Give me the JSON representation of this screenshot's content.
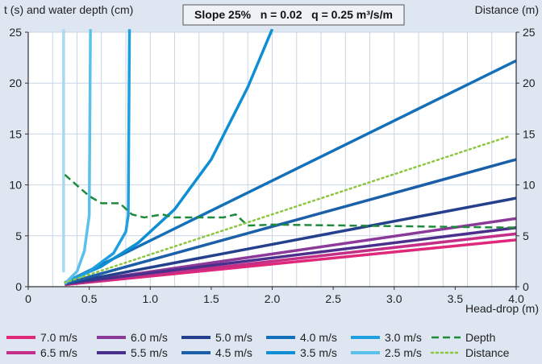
{
  "chart_data": {
    "type": "line",
    "title": "Slope 25%   n = 0.02   q = 0.25 m³/s/m",
    "ylabel_left": "t (s) and water depth (cm)",
    "ylabel_right": "Distance (m)",
    "xlabel": "Head-drop (m)",
    "xlim": [
      0,
      4.0
    ],
    "ylim": [
      0,
      25
    ],
    "ylim_right": [
      0,
      25
    ],
    "x_ticks": [
      "0",
      "0.5",
      "1.0",
      "1.5",
      "2.0",
      "2.5",
      "3.0",
      "3.5",
      "4.0"
    ],
    "y_ticks": [
      "0",
      "5",
      "10",
      "15",
      "20",
      "25"
    ],
    "grid": true,
    "legend_position": "bottom",
    "series": [
      {
        "name": "7.0 m/s",
        "color": "#e0287a",
        "style": "solid",
        "x": [
          0.3,
          4.0
        ],
        "y": [
          0.2,
          4.6
        ]
      },
      {
        "name": "6.5 m/s",
        "color": "#c42e86",
        "style": "solid",
        "x": [
          0.3,
          4.0
        ],
        "y": [
          0.2,
          5.2
        ]
      },
      {
        "name": "6.0 m/s",
        "color": "#8c3a9a",
        "style": "solid",
        "x": [
          0.3,
          4.0
        ],
        "y": [
          0.25,
          6.7
        ]
      },
      {
        "name": "5.5 m/s",
        "color": "#4b2f8c",
        "style": "solid",
        "x": [
          0.3,
          4.0
        ],
        "y": [
          0.3,
          5.8
        ]
      },
      {
        "name": "5.0 m/s",
        "color": "#24408c",
        "style": "solid",
        "x": [
          0.3,
          4.0
        ],
        "y": [
          0.3,
          8.7
        ]
      },
      {
        "name": "4.5 m/s",
        "color": "#1a5fa8",
        "style": "solid",
        "x": [
          0.3,
          4.0
        ],
        "y": [
          0.3,
          12.5
        ]
      },
      {
        "name": "4.0 m/s",
        "color": "#1470b8",
        "style": "solid",
        "x": [
          0.3,
          4.0
        ],
        "y": [
          0.4,
          22.2
        ]
      },
      {
        "name": "3.5 m/s",
        "color": "#0f8fd3",
        "style": "solid",
        "x": [
          0.3,
          0.6,
          0.9,
          1.2,
          1.5,
          1.8,
          2.0
        ],
        "y": [
          0.4,
          2.0,
          4.3,
          7.6,
          12.5,
          19.6,
          25.3
        ]
      },
      {
        "name": "3.0 m/s",
        "color": "#1ea0e0",
        "style": "solid",
        "x": [
          0.3,
          0.5,
          0.7,
          0.8,
          0.82,
          0.83
        ],
        "y": [
          0.4,
          1.5,
          3.3,
          5.4,
          7.0,
          25.3
        ]
      },
      {
        "name": "2.5 m/s",
        "color": "#5cc0ec",
        "style": "solid",
        "x": [
          0.3,
          0.4,
          0.46,
          0.5,
          0.51
        ],
        "y": [
          0.3,
          1.5,
          3.5,
          7.0,
          25.3
        ]
      },
      {
        "name": "2.0 m/s",
        "color": "#a9daf4",
        "style": "solid",
        "x": [
          0.29,
          0.29
        ],
        "y": [
          1.4,
          25.3
        ]
      },
      {
        "name": "Depth",
        "color": "#1e8a3c",
        "style": "dashed",
        "x": [
          0.3,
          0.5,
          0.6,
          0.75,
          0.85,
          0.95,
          1.1,
          1.2,
          1.6,
          1.7,
          1.8,
          2.0,
          4.0
        ],
        "y": [
          11.0,
          8.9,
          8.2,
          8.2,
          7.1,
          6.8,
          7.1,
          6.8,
          6.8,
          7.1,
          6.0,
          6.1,
          5.8
        ]
      },
      {
        "name": "Distance",
        "color": "#8cc63e",
        "style": "dotted",
        "x": [
          0.3,
          3.95
        ],
        "y": [
          0.4,
          14.8
        ]
      }
    ]
  }
}
